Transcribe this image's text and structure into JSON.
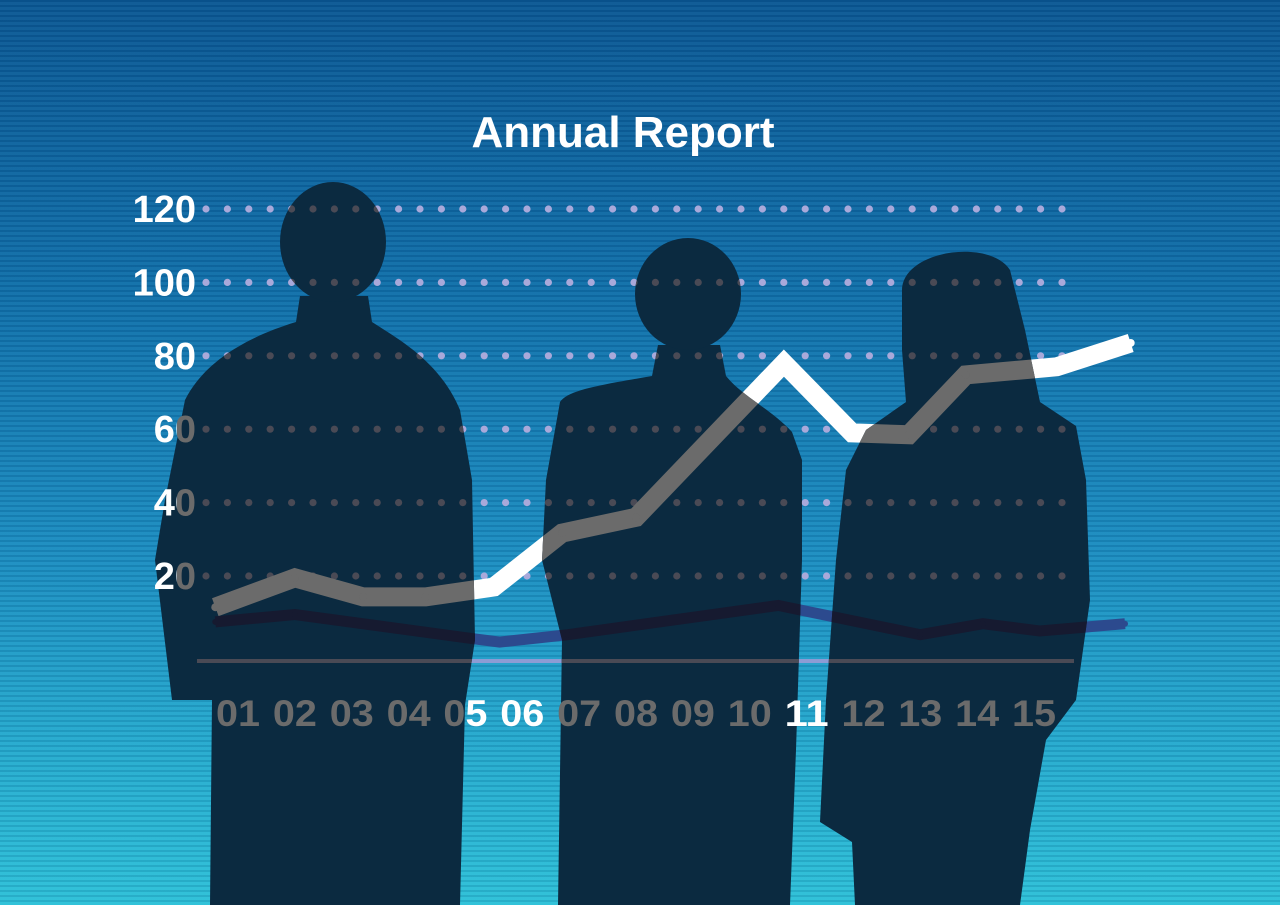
{
  "chart_data": {
    "type": "line",
    "title": "Annual Report",
    "xlabel": "",
    "ylabel": "",
    "categories": [
      "01",
      "02",
      "03",
      "04",
      "05",
      "06",
      "07",
      "08",
      "09",
      "10",
      "11",
      "12",
      "13",
      "14",
      "15"
    ],
    "yticks": [
      "120",
      "100",
      "80",
      "60",
      "40",
      "20"
    ],
    "ytick_values": [
      120,
      100,
      80,
      60,
      40,
      20
    ],
    "ylim": [
      0,
      120
    ],
    "grid": "dotted horizontal",
    "legend": "none",
    "series": [
      {
        "color": "#ffffff",
        "x": [
          0.6,
          2.0,
          3.2,
          4.3,
          5.5,
          6.7,
          8.0,
          10.6,
          11.8,
          12.8,
          13.8,
          15.4,
          16.7
        ],
        "values": [
          11.5,
          19.5,
          14.3,
          14.3,
          17,
          31.7,
          36,
          78,
          59,
          58.5,
          74.8,
          77,
          83.5
        ]
      },
      {
        "color": "#2c4a8e",
        "x": [
          0.6,
          2.0,
          5.1,
          5.6,
          6.8,
          10.5,
          13.0,
          14.1,
          15.1,
          16.6
        ],
        "values": [
          7.5,
          9.5,
          3,
          2,
          4,
          12,
          4,
          7,
          5,
          7
        ]
      }
    ],
    "colors": {
      "silhouette": "#0b2a40",
      "grid_dot": "#a9a9da",
      "axis_line": "#8c9cd4",
      "occluded_mark": "#6b6b6b"
    }
  }
}
